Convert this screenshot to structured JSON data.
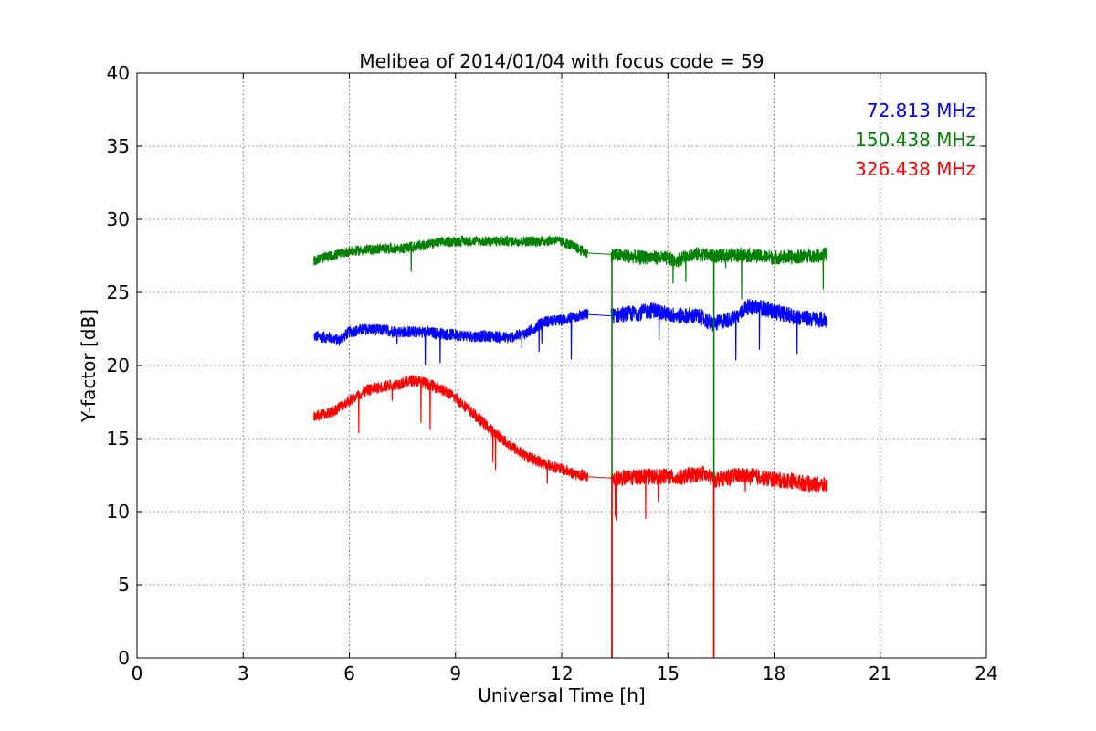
{
  "chart_data": {
    "type": "line",
    "title": "Melibea of 2014/01/04 with focus code = 59",
    "xlabel": "Universal Time [h]",
    "ylabel": "Y-factor [dB]",
    "xlim": [
      0,
      24
    ],
    "ylim": [
      0,
      40
    ],
    "xticks": [
      0,
      3,
      6,
      9,
      12,
      15,
      18,
      21,
      24
    ],
    "yticks": [
      0,
      5,
      10,
      15,
      20,
      25,
      30,
      35,
      40
    ],
    "grid": true,
    "legend_position": "top-right",
    "series": [
      {
        "name": "72.813 MHz",
        "color": "#0000ff",
        "x": [
          5.0,
          5.5,
          5.7,
          6.0,
          6.5,
          7.0,
          7.5,
          8.0,
          8.5,
          9.0,
          9.5,
          10.0,
          10.5,
          11.0,
          11.5,
          12.0,
          12.5,
          12.7,
          13.4,
          13.8,
          14.2,
          14.6,
          15.0,
          15.3,
          15.5,
          15.8,
          16.0,
          16.3,
          16.5,
          16.8,
          17.0,
          17.2,
          17.6,
          18.0,
          18.5,
          19.0,
          19.5
        ],
        "y": [
          22.0,
          21.9,
          21.7,
          22.3,
          22.5,
          22.4,
          22.3,
          22.3,
          22.2,
          22.1,
          22.0,
          22.0,
          21.9,
          22.2,
          23.0,
          23.1,
          23.4,
          23.5,
          23.4,
          23.5,
          23.6,
          23.8,
          23.5,
          23.4,
          23.4,
          23.4,
          23.2,
          22.8,
          23.0,
          23.2,
          23.4,
          24.0,
          24.0,
          23.7,
          23.4,
          23.2,
          23.1
        ]
      },
      {
        "name": "150.438 MHz",
        "color": "#008000",
        "x": [
          5.0,
          5.5,
          6.0,
          6.5,
          7.0,
          7.5,
          8.0,
          8.5,
          9.0,
          9.5,
          10.0,
          10.5,
          11.0,
          11.5,
          11.8,
          12.2,
          12.7,
          13.4,
          13.8,
          14.2,
          14.6,
          15.0,
          15.3,
          15.6,
          16.0,
          16.3,
          16.6,
          17.0,
          17.5,
          18.0,
          18.5,
          19.0,
          19.5
        ],
        "y": [
          27.2,
          27.5,
          27.8,
          27.9,
          28.0,
          28.0,
          28.2,
          28.4,
          28.5,
          28.5,
          28.5,
          28.5,
          28.5,
          28.5,
          28.6,
          28.3,
          27.7,
          27.6,
          27.5,
          27.4,
          27.4,
          27.3,
          27.2,
          27.6,
          27.6,
          27.5,
          27.5,
          27.6,
          27.5,
          27.4,
          27.4,
          27.5,
          27.6
        ]
      },
      {
        "name": "326.438 MHz",
        "color": "#ff0000",
        "x": [
          5.0,
          5.5,
          6.0,
          6.5,
          7.0,
          7.5,
          7.8,
          8.0,
          8.5,
          9.0,
          9.5,
          10.0,
          10.5,
          11.0,
          11.5,
          12.0,
          12.5,
          12.7,
          13.4,
          13.8,
          14.2,
          14.6,
          15.0,
          15.3,
          15.6,
          16.0,
          16.3,
          16.6,
          17.0,
          17.5,
          18.0,
          18.5,
          19.0,
          19.5
        ],
        "y": [
          16.5,
          16.8,
          17.6,
          18.3,
          18.6,
          18.8,
          19.0,
          18.9,
          18.5,
          17.8,
          16.7,
          15.6,
          14.6,
          13.8,
          13.3,
          12.9,
          12.5,
          12.4,
          12.3,
          12.3,
          12.4,
          12.4,
          12.4,
          12.3,
          12.5,
          12.6,
          12.2,
          12.3,
          12.5,
          12.4,
          12.2,
          12.1,
          11.9,
          11.8
        ]
      }
    ],
    "dropouts": [
      {
        "x": 13.42,
        "series": [
          "150.438 MHz",
          "326.438 MHz"
        ],
        "min_y": 0
      },
      {
        "x": 16.3,
        "series": [
          "150.438 MHz",
          "326.438 MHz"
        ],
        "min_y": 0
      }
    ]
  }
}
